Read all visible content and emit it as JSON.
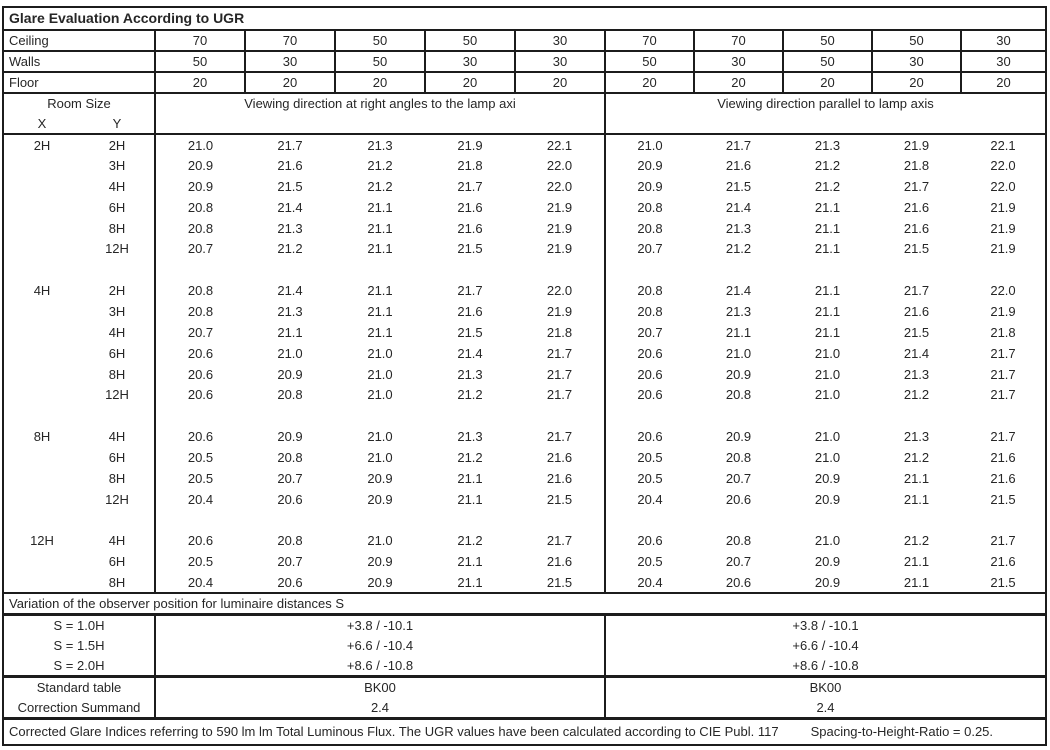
{
  "title": "Glare Evaluation According to UGR",
  "surfaces": [
    {
      "label": "Ceiling",
      "values": [
        "70",
        "70",
        "50",
        "50",
        "30",
        "70",
        "70",
        "50",
        "50",
        "30"
      ]
    },
    {
      "label": "Walls",
      "values": [
        "50",
        "30",
        "50",
        "30",
        "30",
        "50",
        "30",
        "50",
        "30",
        "30"
      ]
    },
    {
      "label": "Floor",
      "values": [
        "20",
        "20",
        "20",
        "20",
        "20",
        "20",
        "20",
        "20",
        "20",
        "20"
      ]
    }
  ],
  "header": {
    "room_size_label": "Room Size",
    "x_label": "X",
    "y_label": "Y",
    "left_section_label": "Viewing direction at right angles to the lamp axi",
    "right_section_label": "Viewing direction parallel to lamp axis"
  },
  "ugr_rows": [
    {
      "x": "2H",
      "y": "2H",
      "values": [
        "21.0",
        "21.7",
        "21.3",
        "21.9",
        "22.1",
        "21.0",
        "21.7",
        "21.3",
        "21.9",
        "22.1"
      ]
    },
    {
      "x": "",
      "y": "3H",
      "values": [
        "20.9",
        "21.6",
        "21.2",
        "21.8",
        "22.0",
        "20.9",
        "21.6",
        "21.2",
        "21.8",
        "22.0"
      ]
    },
    {
      "x": "",
      "y": "4H",
      "values": [
        "20.9",
        "21.5",
        "21.2",
        "21.7",
        "22.0",
        "20.9",
        "21.5",
        "21.2",
        "21.7",
        "22.0"
      ]
    },
    {
      "x": "",
      "y": "6H",
      "values": [
        "20.8",
        "21.4",
        "21.1",
        "21.6",
        "21.9",
        "20.8",
        "21.4",
        "21.1",
        "21.6",
        "21.9"
      ]
    },
    {
      "x": "",
      "y": "8H",
      "values": [
        "20.8",
        "21.3",
        "21.1",
        "21.6",
        "21.9",
        "20.8",
        "21.3",
        "21.1",
        "21.6",
        "21.9"
      ]
    },
    {
      "x": "",
      "y": "12H",
      "values": [
        "20.7",
        "21.2",
        "21.1",
        "21.5",
        "21.9",
        "20.7",
        "21.2",
        "21.1",
        "21.5",
        "21.9"
      ]
    },
    {
      "blank": true
    },
    {
      "x": "4H",
      "y": "2H",
      "values": [
        "20.8",
        "21.4",
        "21.1",
        "21.7",
        "22.0",
        "20.8",
        "21.4",
        "21.1",
        "21.7",
        "22.0"
      ]
    },
    {
      "x": "",
      "y": "3H",
      "values": [
        "20.8",
        "21.3",
        "21.1",
        "21.6",
        "21.9",
        "20.8",
        "21.3",
        "21.1",
        "21.6",
        "21.9"
      ]
    },
    {
      "x": "",
      "y": "4H",
      "values": [
        "20.7",
        "21.1",
        "21.1",
        "21.5",
        "21.8",
        "20.7",
        "21.1",
        "21.1",
        "21.5",
        "21.8"
      ]
    },
    {
      "x": "",
      "y": "6H",
      "values": [
        "20.6",
        "21.0",
        "21.0",
        "21.4",
        "21.7",
        "20.6",
        "21.0",
        "21.0",
        "21.4",
        "21.7"
      ]
    },
    {
      "x": "",
      "y": "8H",
      "values": [
        "20.6",
        "20.9",
        "21.0",
        "21.3",
        "21.7",
        "20.6",
        "20.9",
        "21.0",
        "21.3",
        "21.7"
      ]
    },
    {
      "x": "",
      "y": "12H",
      "values": [
        "20.6",
        "20.8",
        "21.0",
        "21.2",
        "21.7",
        "20.6",
        "20.8",
        "21.0",
        "21.2",
        "21.7"
      ]
    },
    {
      "blank": true
    },
    {
      "x": "8H",
      "y": "4H",
      "values": [
        "20.6",
        "20.9",
        "21.0",
        "21.3",
        "21.7",
        "20.6",
        "20.9",
        "21.0",
        "21.3",
        "21.7"
      ]
    },
    {
      "x": "",
      "y": "6H",
      "values": [
        "20.5",
        "20.8",
        "21.0",
        "21.2",
        "21.6",
        "20.5",
        "20.8",
        "21.0",
        "21.2",
        "21.6"
      ]
    },
    {
      "x": "",
      "y": "8H",
      "values": [
        "20.5",
        "20.7",
        "20.9",
        "21.1",
        "21.6",
        "20.5",
        "20.7",
        "20.9",
        "21.1",
        "21.6"
      ]
    },
    {
      "x": "",
      "y": "12H",
      "values": [
        "20.4",
        "20.6",
        "20.9",
        "21.1",
        "21.5",
        "20.4",
        "20.6",
        "20.9",
        "21.1",
        "21.5"
      ]
    },
    {
      "blank": true
    },
    {
      "x": "12H",
      "y": "4H",
      "values": [
        "20.6",
        "20.8",
        "21.0",
        "21.2",
        "21.7",
        "20.6",
        "20.8",
        "21.0",
        "21.2",
        "21.7"
      ]
    },
    {
      "x": "",
      "y": "6H",
      "values": [
        "20.5",
        "20.7",
        "20.9",
        "21.1",
        "21.6",
        "20.5",
        "20.7",
        "20.9",
        "21.1",
        "21.6"
      ]
    },
    {
      "x": "",
      "y": "8H",
      "values": [
        "20.4",
        "20.6",
        "20.9",
        "21.1",
        "21.5",
        "20.4",
        "20.6",
        "20.9",
        "21.1",
        "21.5"
      ]
    }
  ],
  "variation": {
    "title": "Variation of the observer position for luminaire distances S",
    "rows": [
      {
        "label": "S = 1.0H",
        "left": "+3.8 / -10.1",
        "right": "+3.8 / -10.1"
      },
      {
        "label": "S = 1.5H",
        "left": "+6.6 / -10.4",
        "right": "+6.6 / -10.4"
      },
      {
        "label": "S = 2.0H",
        "left": "+8.6 / -10.8",
        "right": "+8.6 / -10.8"
      }
    ]
  },
  "summary": {
    "rows": [
      {
        "label": "Standard table",
        "left": "BK00",
        "right": "BK00"
      },
      {
        "label": "Correction Summand",
        "left": "2.4",
        "right": "2.4"
      }
    ]
  },
  "footer": {
    "main": "Corrected Glare Indices referring to 590 lm lm Total Luminous Flux. The UGR values have been calculated according to CIE Publ. 117",
    "ratio": "Spacing-to-Height-Ratio = 0.25."
  }
}
